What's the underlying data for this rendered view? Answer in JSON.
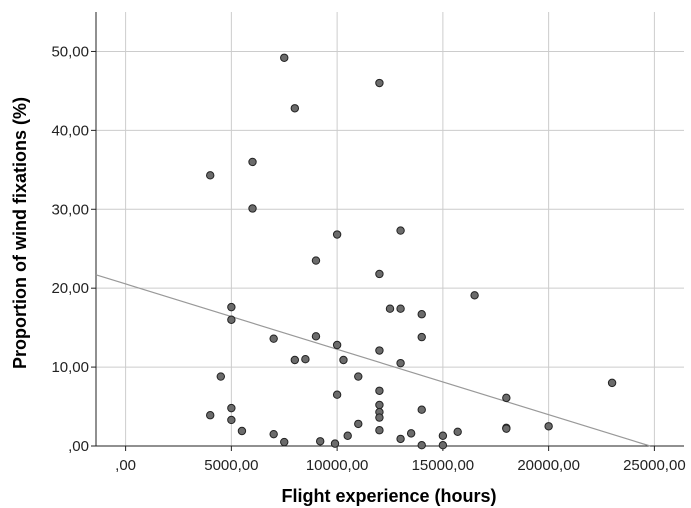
{
  "chart_data": {
    "type": "scatter",
    "xlabel": "Flight experience (hours)",
    "ylabel": "Proportion of wind fixations (%)",
    "xlim": [
      -1400,
      26400
    ],
    "ylim": [
      0,
      55
    ],
    "xticks": [
      0,
      5000,
      10000,
      15000,
      20000,
      25000
    ],
    "xtick_labels": [
      ",00",
      "5000,00",
      "10000,00",
      "15000,00",
      "20000,00",
      "25000,00"
    ],
    "yticks": [
      0,
      10,
      20,
      30,
      40,
      50
    ],
    "ytick_labels": [
      ",00",
      "10,00",
      "20,00",
      "30,00",
      "40,00",
      "50,00"
    ],
    "grid": true,
    "colors": {
      "point_fill": "#6b6b6b",
      "point_stroke": "#222222",
      "grid": "#cccccc",
      "fit_line": "#999999",
      "axis": "#222222"
    },
    "fit_line": {
      "x": [
        -1400,
        24800
      ],
      "y": [
        21.7,
        0
      ]
    },
    "points": [
      {
        "x": 7500,
        "y": 49.2
      },
      {
        "x": 12000,
        "y": 46.0
      },
      {
        "x": 8000,
        "y": 42.8
      },
      {
        "x": 6000,
        "y": 36.0
      },
      {
        "x": 4000,
        "y": 34.3
      },
      {
        "x": 6000,
        "y": 30.1
      },
      {
        "x": 13000,
        "y": 27.3
      },
      {
        "x": 10000,
        "y": 26.8
      },
      {
        "x": 9000,
        "y": 23.5
      },
      {
        "x": 12000,
        "y": 21.8
      },
      {
        "x": 16500,
        "y": 19.1
      },
      {
        "x": 5000,
        "y": 17.6
      },
      {
        "x": 12500,
        "y": 17.4
      },
      {
        "x": 13000,
        "y": 17.4
      },
      {
        "x": 14000,
        "y": 16.7
      },
      {
        "x": 5000,
        "y": 16.0
      },
      {
        "x": 9000,
        "y": 13.9
      },
      {
        "x": 7000,
        "y": 13.6
      },
      {
        "x": 14000,
        "y": 13.8
      },
      {
        "x": 10000,
        "y": 12.8
      },
      {
        "x": 12000,
        "y": 12.1
      },
      {
        "x": 8000,
        "y": 10.9
      },
      {
        "x": 8500,
        "y": 11.0
      },
      {
        "x": 10300,
        "y": 10.9
      },
      {
        "x": 13000,
        "y": 10.5
      },
      {
        "x": 4500,
        "y": 8.8
      },
      {
        "x": 11000,
        "y": 8.8
      },
      {
        "x": 23000,
        "y": 8.0
      },
      {
        "x": 12000,
        "y": 7.0
      },
      {
        "x": 10000,
        "y": 6.5
      },
      {
        "x": 18000,
        "y": 6.1
      },
      {
        "x": 12000,
        "y": 5.2
      },
      {
        "x": 5000,
        "y": 4.8
      },
      {
        "x": 14000,
        "y": 4.6
      },
      {
        "x": 12000,
        "y": 4.3
      },
      {
        "x": 4000,
        "y": 3.9
      },
      {
        "x": 12000,
        "y": 3.6
      },
      {
        "x": 5000,
        "y": 3.3
      },
      {
        "x": 11000,
        "y": 2.8
      },
      {
        "x": 18000,
        "y": 2.3
      },
      {
        "x": 18000,
        "y": 2.2
      },
      {
        "x": 20000,
        "y": 2.5
      },
      {
        "x": 5500,
        "y": 1.9
      },
      {
        "x": 12000,
        "y": 2.0
      },
      {
        "x": 15700,
        "y": 1.8
      },
      {
        "x": 7000,
        "y": 1.5
      },
      {
        "x": 13500,
        "y": 1.6
      },
      {
        "x": 10500,
        "y": 1.3
      },
      {
        "x": 15000,
        "y": 1.3
      },
      {
        "x": 13000,
        "y": 0.9
      },
      {
        "x": 9200,
        "y": 0.6
      },
      {
        "x": 7500,
        "y": 0.5
      },
      {
        "x": 9900,
        "y": 0.3
      },
      {
        "x": 14000,
        "y": 0.1
      },
      {
        "x": 15000,
        "y": 0.1
      }
    ]
  }
}
